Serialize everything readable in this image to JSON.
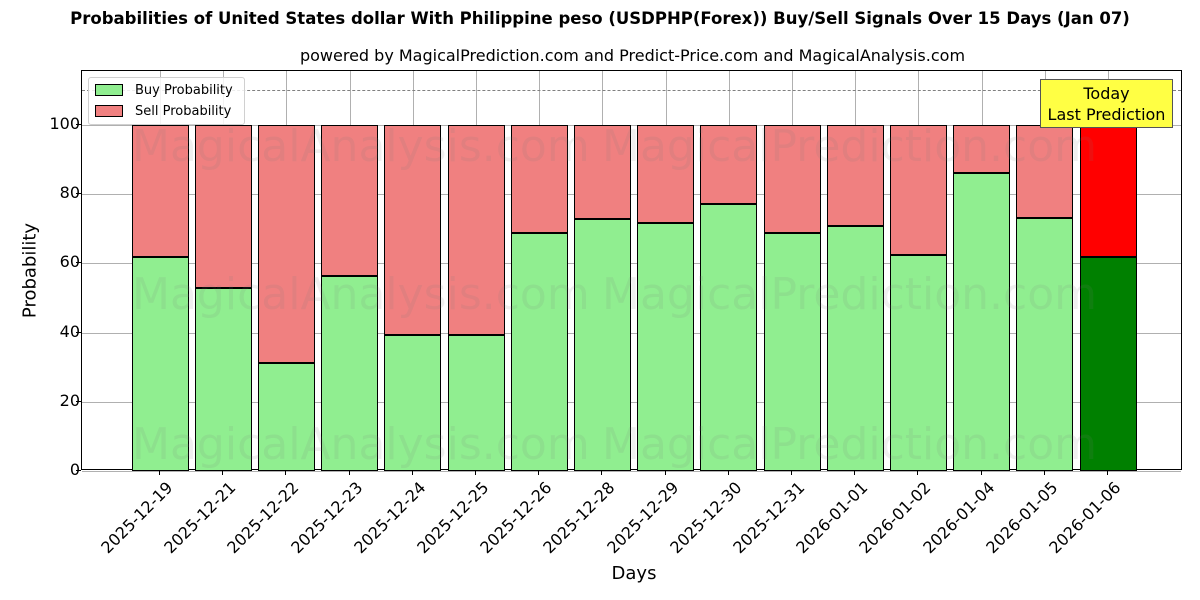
{
  "chart_data": {
    "type": "bar",
    "stacked": true,
    "title": "Probabilities of United States dollar With Philippine peso (USDPHP(Forex)) Buy/Sell Signals Over 15 Days (Jan 07)",
    "subtitle": "powered by MagicalPrediction.com and Predict-Price.com and MagicalAnalysis.com",
    "xlabel": "Days",
    "ylabel": "Probability",
    "ylim": [
      0,
      115
    ],
    "yticks": [
      0,
      20,
      40,
      60,
      80,
      100
    ],
    "grid": true,
    "legend_position": "upper left",
    "reference_line": {
      "y": 110,
      "style": "dashed",
      "color": "#808080"
    },
    "categories": [
      "2025-12-19",
      "2025-12-21",
      "2025-12-22",
      "2025-12-23",
      "2025-12-24",
      "2025-12-25",
      "2025-12-26",
      "2025-12-28",
      "2025-12-29",
      "2025-12-30",
      "2025-12-31",
      "2026-01-01",
      "2026-01-02",
      "2026-01-04",
      "2026-01-05",
      "2026-01-06"
    ],
    "series": [
      {
        "name": "Buy Probability",
        "color": "#90ee90",
        "values": [
          61.8,
          52.9,
          31.2,
          56.4,
          39.3,
          39.3,
          68.8,
          72.8,
          71.7,
          77.2,
          68.8,
          70.8,
          62.4,
          86.1,
          73.1,
          61.8
        ]
      },
      {
        "name": "Sell Probability",
        "color": "#f08080",
        "values": [
          38.2,
          47.1,
          68.8,
          43.6,
          60.7,
          60.7,
          31.2,
          27.2,
          28.3,
          22.8,
          31.2,
          29.2,
          37.6,
          13.9,
          26.9,
          38.2
        ]
      }
    ],
    "highlight": {
      "index": 15,
      "buy_color": "#008000",
      "sell_color": "#ff0000",
      "annotation": "Today\nLast Prediction",
      "annotation_bg": "#ffff44"
    },
    "watermarks": [
      "MagicalAnalysis.com",
      "MagicalPrediction.com"
    ]
  },
  "annotation": {
    "line1": "Today",
    "line2": "Last Prediction"
  },
  "legend": {
    "buy": "Buy Probability",
    "sell": "Sell Probability"
  }
}
